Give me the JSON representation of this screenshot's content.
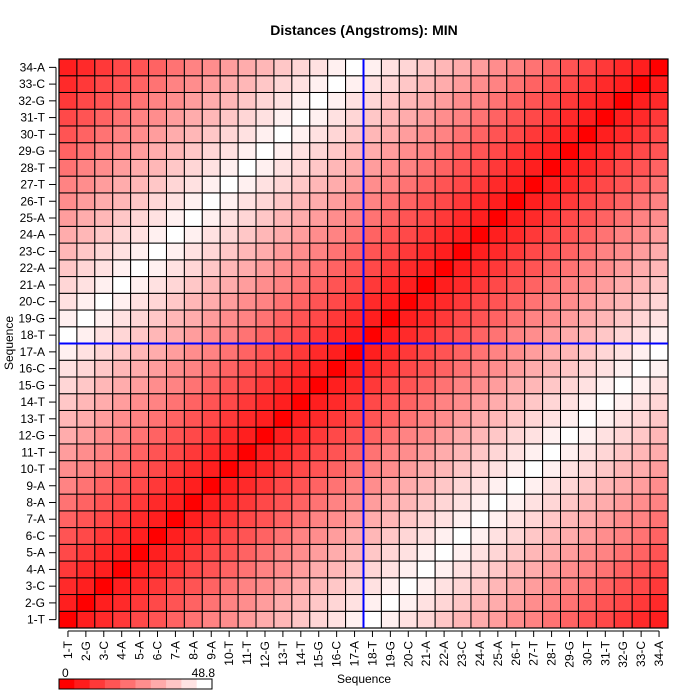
{
  "chart_data": {
    "type": "heatmap",
    "title": "Distances (Angstroms):  MIN",
    "xlabel": "Sequence",
    "ylabel": "Sequence",
    "labels": [
      "1-T",
      "2-G",
      "3-C",
      "4-A",
      "5-A",
      "6-C",
      "7-A",
      "8-A",
      "9-A",
      "10-T",
      "11-T",
      "12-G",
      "13-T",
      "14-T",
      "15-G",
      "16-C",
      "17-A",
      "18-T",
      "19-G",
      "20-C",
      "21-A",
      "22-A",
      "23-C",
      "24-A",
      "25-A",
      "26-T",
      "27-T",
      "28-T",
      "29-G",
      "30-T",
      "31-T",
      "32-G",
      "33-C",
      "34-A"
    ],
    "color_range": [
      0,
      48.8
    ],
    "colorbar": {
      "min_label": "0",
      "max_label": "48.8",
      "steps": 10,
      "low_color": "#ff0000",
      "high_color": "#ffffff"
    },
    "divider_after_index": 17,
    "divider_color": "#0000ff",
    "values": [
      [
        0,
        6,
        8,
        11,
        14,
        16,
        19,
        22,
        25,
        27,
        30,
        33,
        35,
        38,
        41,
        43,
        46,
        48.8,
        46,
        43,
        41,
        38,
        35,
        33,
        30,
        27,
        25,
        22,
        19,
        16,
        14,
        11,
        8,
        6
      ],
      [
        6,
        0,
        6,
        8,
        11,
        14,
        16,
        19,
        22,
        25,
        27,
        30,
        33,
        35,
        38,
        41,
        43,
        46,
        48.8,
        46,
        43,
        41,
        38,
        35,
        33,
        30,
        27,
        25,
        22,
        19,
        16,
        14,
        11,
        8
      ],
      [
        8,
        6,
        0,
        6,
        8,
        11,
        14,
        16,
        19,
        22,
        25,
        27,
        30,
        33,
        35,
        38,
        41,
        43,
        46,
        48.8,
        46,
        43,
        41,
        38,
        35,
        33,
        30,
        27,
        25,
        22,
        19,
        16,
        14,
        11
      ],
      [
        11,
        8,
        6,
        0,
        6,
        8,
        11,
        14,
        16,
        19,
        22,
        25,
        27,
        30,
        33,
        35,
        38,
        41,
        43,
        46,
        48.8,
        46,
        43,
        41,
        38,
        35,
        33,
        30,
        27,
        25,
        22,
        19,
        16,
        14
      ],
      [
        14,
        11,
        8,
        6,
        0,
        6,
        8,
        11,
        14,
        16,
        19,
        22,
        25,
        27,
        30,
        33,
        35,
        38,
        41,
        43,
        46,
        48.8,
        46,
        43,
        41,
        38,
        35,
        33,
        30,
        27,
        25,
        22,
        19,
        16
      ],
      [
        16,
        14,
        11,
        8,
        6,
        0,
        6,
        8,
        11,
        14,
        16,
        19,
        22,
        25,
        27,
        30,
        33,
        35,
        38,
        41,
        43,
        46,
        48.8,
        46,
        43,
        41,
        38,
        35,
        33,
        30,
        27,
        25,
        22,
        19
      ],
      [
        19,
        16,
        14,
        11,
        8,
        6,
        0,
        6,
        8,
        11,
        14,
        16,
        19,
        22,
        25,
        27,
        30,
        33,
        35,
        38,
        41,
        43,
        46,
        48.8,
        46,
        43,
        41,
        38,
        35,
        33,
        30,
        27,
        25,
        22
      ],
      [
        22,
        19,
        16,
        14,
        11,
        8,
        6,
        0,
        6,
        8,
        11,
        14,
        16,
        19,
        22,
        25,
        27,
        30,
        33,
        35,
        38,
        41,
        43,
        46,
        48.8,
        46,
        43,
        41,
        38,
        35,
        33,
        30,
        27,
        25
      ],
      [
        25,
        22,
        19,
        16,
        14,
        11,
        8,
        6,
        0,
        6,
        8,
        11,
        14,
        16,
        19,
        22,
        25,
        27,
        30,
        33,
        35,
        38,
        41,
        43,
        46,
        48.8,
        46,
        43,
        41,
        38,
        35,
        33,
        30,
        27
      ],
      [
        27,
        25,
        22,
        19,
        16,
        14,
        11,
        8,
        6,
        0,
        6,
        8,
        11,
        14,
        16,
        19,
        22,
        25,
        27,
        30,
        33,
        35,
        38,
        41,
        43,
        46,
        48.8,
        46,
        43,
        41,
        38,
        35,
        33,
        30
      ],
      [
        30,
        27,
        25,
        22,
        19,
        16,
        14,
        11,
        8,
        6,
        0,
        6,
        8,
        11,
        14,
        16,
        19,
        22,
        25,
        27,
        30,
        33,
        35,
        38,
        41,
        43,
        46,
        48.8,
        46,
        43,
        41,
        38,
        35,
        33
      ],
      [
        33,
        30,
        27,
        25,
        22,
        19,
        16,
        14,
        11,
        8,
        6,
        0,
        6,
        8,
        11,
        14,
        16,
        19,
        22,
        25,
        27,
        30,
        33,
        35,
        38,
        41,
        43,
        46,
        48.8,
        46,
        43,
        41,
        38,
        35
      ],
      [
        35,
        33,
        30,
        27,
        25,
        22,
        19,
        16,
        14,
        11,
        8,
        6,
        0,
        6,
        8,
        11,
        14,
        16,
        19,
        22,
        25,
        27,
        30,
        33,
        35,
        38,
        41,
        43,
        46,
        48.8,
        46,
        43,
        41,
        38
      ],
      [
        38,
        35,
        33,
        30,
        27,
        25,
        22,
        19,
        16,
        14,
        11,
        8,
        6,
        0,
        6,
        8,
        11,
        14,
        16,
        19,
        22,
        25,
        27,
        30,
        33,
        35,
        38,
        41,
        43,
        46,
        48.8,
        46,
        43,
        41
      ],
      [
        41,
        38,
        35,
        33,
        30,
        27,
        25,
        22,
        19,
        16,
        14,
        11,
        8,
        6,
        0,
        6,
        8,
        11,
        14,
        16,
        19,
        22,
        25,
        27,
        30,
        33,
        35,
        38,
        41,
        43,
        46,
        48.8,
        46,
        43
      ],
      [
        43,
        41,
        38,
        35,
        33,
        30,
        27,
        25,
        22,
        19,
        16,
        14,
        11,
        8,
        6,
        0,
        6,
        8,
        11,
        14,
        16,
        19,
        22,
        25,
        27,
        30,
        33,
        35,
        38,
        41,
        43,
        46,
        48.8,
        46
      ],
      [
        46,
        43,
        41,
        38,
        35,
        33,
        30,
        27,
        25,
        22,
        19,
        16,
        14,
        11,
        8,
        6,
        0,
        6,
        8,
        11,
        14,
        16,
        19,
        22,
        25,
        27,
        30,
        33,
        35,
        38,
        41,
        43,
        46,
        48.8
      ],
      [
        48.8,
        46,
        43,
        41,
        38,
        35,
        33,
        30,
        27,
        25,
        22,
        19,
        16,
        14,
        11,
        8,
        6,
        0,
        6,
        8,
        11,
        14,
        16,
        19,
        22,
        25,
        27,
        30,
        33,
        35,
        38,
        41,
        43,
        46
      ],
      [
        46,
        48.8,
        46,
        43,
        41,
        38,
        35,
        33,
        30,
        27,
        25,
        22,
        19,
        16,
        14,
        11,
        8,
        6,
        0,
        6,
        8,
        11,
        14,
        16,
        19,
        22,
        25,
        27,
        30,
        33,
        35,
        38,
        41,
        43
      ],
      [
        43,
        46,
        48.8,
        46,
        43,
        41,
        38,
        35,
        33,
        30,
        27,
        25,
        22,
        19,
        16,
        14,
        11,
        8,
        6,
        0,
        6,
        8,
        11,
        14,
        16,
        19,
        22,
        25,
        27,
        30,
        33,
        35,
        38,
        41
      ],
      [
        41,
        43,
        46,
        48.8,
        46,
        43,
        41,
        38,
        35,
        33,
        30,
        27,
        25,
        22,
        19,
        16,
        14,
        11,
        8,
        6,
        0,
        6,
        8,
        11,
        14,
        16,
        19,
        22,
        25,
        27,
        30,
        33,
        35,
        38
      ],
      [
        38,
        41,
        43,
        46,
        48.8,
        46,
        43,
        41,
        38,
        35,
        33,
        30,
        27,
        25,
        22,
        19,
        16,
        14,
        11,
        8,
        6,
        0,
        6,
        8,
        11,
        14,
        16,
        19,
        22,
        25,
        27,
        30,
        33,
        35
      ],
      [
        35,
        38,
        41,
        43,
        46,
        48.8,
        46,
        43,
        41,
        38,
        35,
        33,
        30,
        27,
        25,
        22,
        19,
        16,
        14,
        11,
        8,
        6,
        0,
        6,
        8,
        11,
        14,
        16,
        19,
        22,
        25,
        27,
        30,
        33
      ],
      [
        33,
        35,
        38,
        41,
        43,
        46,
        48.8,
        46,
        43,
        41,
        38,
        35,
        33,
        30,
        27,
        25,
        22,
        19,
        16,
        14,
        11,
        8,
        6,
        0,
        6,
        8,
        11,
        14,
        16,
        19,
        22,
        25,
        27,
        30
      ],
      [
        30,
        33,
        35,
        38,
        41,
        43,
        46,
        48.8,
        46,
        43,
        41,
        38,
        35,
        33,
        30,
        27,
        25,
        22,
        19,
        16,
        14,
        11,
        8,
        6,
        0,
        6,
        8,
        11,
        14,
        16,
        19,
        22,
        25,
        27
      ],
      [
        27,
        30,
        33,
        35,
        38,
        41,
        43,
        46,
        48.8,
        46,
        43,
        41,
        38,
        35,
        33,
        30,
        27,
        25,
        22,
        19,
        16,
        14,
        11,
        8,
        6,
        0,
        6,
        8,
        11,
        14,
        16,
        19,
        22,
        25
      ],
      [
        25,
        27,
        30,
        33,
        35,
        38,
        41,
        43,
        46,
        48.8,
        46,
        43,
        41,
        38,
        35,
        33,
        30,
        27,
        25,
        22,
        19,
        16,
        14,
        11,
        8,
        6,
        0,
        6,
        8,
        11,
        14,
        16,
        19,
        22
      ],
      [
        22,
        25,
        27,
        30,
        33,
        35,
        38,
        41,
        43,
        46,
        48.8,
        46,
        43,
        41,
        38,
        35,
        33,
        30,
        27,
        25,
        22,
        19,
        16,
        14,
        11,
        8,
        6,
        0,
        6,
        8,
        11,
        14,
        16,
        19
      ],
      [
        19,
        22,
        25,
        27,
        30,
        33,
        35,
        38,
        41,
        43,
        46,
        48.8,
        46,
        43,
        41,
        38,
        35,
        33,
        30,
        27,
        25,
        22,
        19,
        16,
        14,
        11,
        8,
        6,
        0,
        6,
        8,
        11,
        14,
        16
      ],
      [
        16,
        19,
        22,
        25,
        27,
        30,
        33,
        35,
        38,
        41,
        43,
        46,
        48.8,
        46,
        43,
        41,
        38,
        35,
        33,
        30,
        27,
        25,
        22,
        19,
        16,
        14,
        11,
        8,
        6,
        0,
        6,
        8,
        11,
        14
      ],
      [
        14,
        16,
        19,
        22,
        25,
        27,
        30,
        33,
        35,
        38,
        41,
        43,
        46,
        48.8,
        46,
        43,
        41,
        38,
        35,
        33,
        30,
        27,
        25,
        22,
        19,
        16,
        14,
        11,
        8,
        6,
        0,
        6,
        8,
        11
      ],
      [
        11,
        14,
        16,
        19,
        22,
        25,
        27,
        30,
        33,
        35,
        38,
        41,
        43,
        46,
        48.8,
        46,
        43,
        41,
        38,
        35,
        33,
        30,
        27,
        25,
        22,
        19,
        16,
        14,
        11,
        8,
        6,
        0,
        6,
        8
      ],
      [
        8,
        11,
        14,
        16,
        19,
        22,
        25,
        27,
        30,
        33,
        35,
        38,
        41,
        43,
        46,
        48.8,
        46,
        43,
        41,
        38,
        35,
        33,
        30,
        27,
        25,
        22,
        19,
        16,
        14,
        11,
        8,
        6,
        0,
        6
      ],
      [
        6,
        8,
        11,
        14,
        16,
        19,
        22,
        25,
        27,
        30,
        33,
        35,
        38,
        41,
        43,
        46,
        48.8,
        46,
        43,
        41,
        38,
        35,
        33,
        30,
        27,
        25,
        22,
        19,
        16,
        14,
        11,
        8,
        6,
        0
      ]
    ]
  }
}
